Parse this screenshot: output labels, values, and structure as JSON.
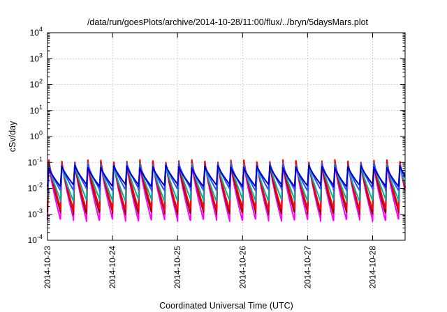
{
  "chart_data": {
    "type": "line",
    "title": "/data/run/goesPlots/archive/2014-10-28/11:00/flux/../bryn/5daysMars.plot",
    "xlabel": "Coordinated Universal Time (UTC)",
    "ylabel": "cSv/day",
    "yscale": "log",
    "ylim": [
      0.0001,
      10000
    ],
    "xlim": [
      "2014-10-23T00:00",
      "2014-10-28T12:00"
    ],
    "x_ticks": [
      "2014-10-23",
      "2014-10-24",
      "2014-10-25",
      "2014-10-26",
      "2014-10-27",
      "2014-10-28"
    ],
    "y_ticks": [
      {
        "value": 0.0001,
        "base": "10",
        "exp": "-4"
      },
      {
        "value": 0.001,
        "base": "10",
        "exp": "-3"
      },
      {
        "value": 0.01,
        "base": "10",
        "exp": "-2"
      },
      {
        "value": 0.1,
        "base": "10",
        "exp": "-1"
      },
      {
        "value": 1,
        "base": "10",
        "exp": "0"
      },
      {
        "value": 10,
        "base": "10",
        "exp": "1"
      },
      {
        "value": 100,
        "base": "10",
        "exp": "2"
      },
      {
        "value": 1000,
        "base": "10",
        "exp": "3"
      },
      {
        "value": 10000,
        "base": "10",
        "exp": "4"
      }
    ],
    "grid": true,
    "legend": "none",
    "cycle_hours": 4.8,
    "series": [
      {
        "color": "#ff00ff",
        "peak": 0.1,
        "trough": 0.0006
      },
      {
        "color": "#8b0000",
        "peak": 0.11,
        "trough": 0.0011
      },
      {
        "color": "#ff0000",
        "peak": 0.12,
        "trough": 0.0016
      },
      {
        "color": "#00b0a0",
        "peak": 0.09,
        "trough": 0.0035
      },
      {
        "color": "#3050ff",
        "peak": 0.085,
        "trough": 0.009
      },
      {
        "color": "#0000cd",
        "peak": 0.07,
        "trough": 0.013
      }
    ]
  }
}
